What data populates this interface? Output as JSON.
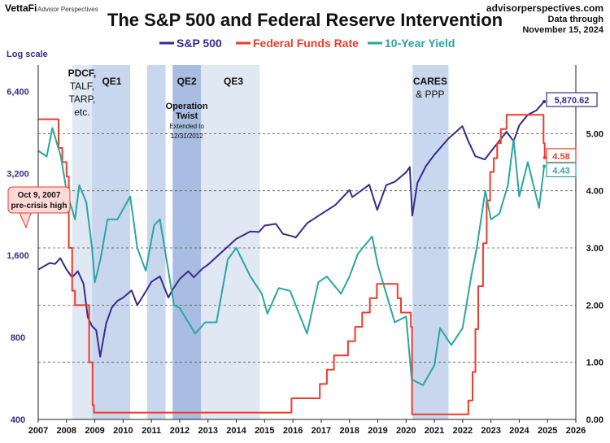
{
  "header": {
    "brand_name": "VettaFi",
    "brand_sub": "Advisor Perspectives",
    "title": "The S&P 500 and Federal Reserve Intervention",
    "source_site": "advisorperspectives.com",
    "data_through_1": "Data through",
    "data_through_2": "November 15, 2024"
  },
  "colors": {
    "sp500": "#3a2a8c",
    "fed_funds": "#ef3b2c",
    "ten_year": "#2aa6a0",
    "band_light": "#dde6f3",
    "band_mid": "#c2d3ec",
    "band_dark": "#9fb6de",
    "left_axis_text": "#3a2a8c"
  },
  "chart_data": {
    "type": "line",
    "title": "The S&P 500 and Federal Reserve Intervention",
    "log_scale_label": "Log scale",
    "x_ticks": [
      "2007",
      "2008",
      "2009",
      "2010",
      "2011",
      "2012",
      "2013",
      "2014",
      "2015",
      "2016",
      "2017",
      "2018",
      "2019",
      "2020",
      "2021",
      "2022",
      "2023",
      "2024",
      "2025",
      "2026"
    ],
    "xlim": [
      2007,
      2026
    ],
    "left_axis": {
      "scale": "log",
      "ylim": [
        400,
        8000
      ],
      "ticks": [
        400,
        800,
        1600,
        3200,
        6400
      ],
      "tick_labels": [
        "400",
        "800",
        "1,600",
        "3,200",
        "6,400"
      ]
    },
    "right_axis": {
      "ylim": [
        0,
        6.2
      ],
      "ticks": [
        0,
        1,
        2,
        3,
        4,
        5
      ],
      "tick_labels": [
        "0.00",
        "1.00",
        "2.00",
        "3.00",
        "4.00",
        "5.00"
      ]
    },
    "grid": "dashed horizontal at right-axis ticks",
    "legend": {
      "placement": "top",
      "entries": [
        "S&P 500",
        "Federal Funds Rate",
        "10-Year Yield"
      ]
    },
    "series": [
      {
        "name": "S&P 500",
        "axis": "left",
        "x": [
          2007.0,
          2007.2,
          2007.4,
          2007.6,
          2007.78,
          2008.0,
          2008.2,
          2008.4,
          2008.6,
          2008.75,
          2008.9,
          2009.05,
          2009.19,
          2009.4,
          2009.6,
          2009.8,
          2010.0,
          2010.3,
          2010.5,
          2010.8,
          2011.0,
          2011.3,
          2011.6,
          2011.75,
          2012.0,
          2012.3,
          2012.5,
          2012.8,
          2013.0,
          2013.5,
          2014.0,
          2014.5,
          2014.8,
          2015.0,
          2015.4,
          2015.65,
          2016.0,
          2016.1,
          2016.5,
          2017.0,
          2017.5,
          2018.0,
          2018.1,
          2018.7,
          2018.98,
          2019.3,
          2019.6,
          2020.0,
          2020.13,
          2020.22,
          2020.4,
          2020.7,
          2021.0,
          2021.5,
          2021.99,
          2022.2,
          2022.45,
          2022.78,
          2023.0,
          2023.55,
          2023.8,
          2024.0,
          2024.3,
          2024.6,
          2024.88
        ],
        "values": [
          1420,
          1460,
          1500,
          1490,
          1565,
          1420,
          1330,
          1400,
          1260,
          950,
          880,
          850,
          680,
          900,
          1030,
          1090,
          1120,
          1190,
          1050,
          1180,
          1280,
          1340,
          1120,
          1200,
          1310,
          1400,
          1330,
          1430,
          1480,
          1650,
          1840,
          1960,
          1950,
          2060,
          2090,
          1920,
          1880,
          1860,
          2100,
          2270,
          2450,
          2780,
          2620,
          2910,
          2350,
          2900,
          2980,
          3230,
          3380,
          2240,
          2950,
          3400,
          3750,
          4300,
          4770,
          4200,
          3700,
          3600,
          3850,
          4550,
          4200,
          4800,
          5250,
          5450,
          5870.62
        ],
        "last_label": "5,870.62"
      },
      {
        "name": "Federal Funds Rate",
        "axis": "right",
        "x": [
          2007.0,
          2007.6,
          2007.72,
          2007.85,
          2008.0,
          2008.08,
          2008.2,
          2008.3,
          2008.8,
          2008.92,
          2008.97,
          2015.95,
          2016.95,
          2017.2,
          2017.45,
          2017.95,
          2018.2,
          2018.45,
          2018.72,
          2018.97,
          2019.55,
          2019.7,
          2019.82,
          2020.17,
          2020.21,
          2022.2,
          2022.35,
          2022.45,
          2022.55,
          2022.72,
          2022.85,
          2022.97,
          2023.1,
          2023.22,
          2023.35,
          2023.55,
          2024.7,
          2024.86,
          2024.9
        ],
        "values": [
          5.25,
          5.25,
          4.75,
          4.5,
          4.25,
          3.0,
          2.25,
          2.0,
          1.0,
          0.25,
          0.12,
          0.37,
          0.62,
          0.87,
          1.12,
          1.37,
          1.62,
          1.87,
          2.12,
          2.37,
          2.37,
          2.12,
          1.87,
          1.62,
          0.09,
          0.33,
          0.83,
          1.58,
          2.33,
          3.08,
          3.83,
          4.33,
          4.57,
          4.83,
          5.08,
          5.33,
          5.33,
          4.83,
          4.58
        ],
        "last_label": "4.58"
      },
      {
        "name": "10-Year Yield",
        "axis": "right",
        "x": [
          2007.0,
          2007.3,
          2007.5,
          2007.8,
          2008.0,
          2008.3,
          2008.45,
          2008.7,
          2008.9,
          2009.0,
          2009.2,
          2009.45,
          2009.8,
          2010.25,
          2010.5,
          2010.8,
          2011.1,
          2011.3,
          2011.6,
          2011.8,
          2012.0,
          2012.55,
          2012.9,
          2013.3,
          2013.7,
          2014.0,
          2014.5,
          2014.9,
          2015.1,
          2015.5,
          2015.9,
          2016.5,
          2016.9,
          2017.2,
          2017.7,
          2018.0,
          2018.3,
          2018.8,
          2019.0,
          2019.6,
          2020.0,
          2020.2,
          2020.6,
          2021.0,
          2021.2,
          2021.6,
          2022.0,
          2022.3,
          2022.5,
          2022.8,
          2023.0,
          2023.3,
          2023.6,
          2023.8,
          2024.0,
          2024.3,
          2024.7,
          2024.88
        ],
        "values": [
          4.7,
          4.6,
          5.1,
          4.6,
          4.0,
          3.5,
          4.1,
          3.8,
          3.0,
          2.4,
          2.8,
          3.5,
          3.5,
          3.9,
          3.0,
          2.6,
          3.4,
          3.5,
          2.6,
          2.0,
          1.95,
          1.5,
          1.7,
          1.7,
          2.8,
          3.0,
          2.5,
          2.2,
          1.85,
          2.3,
          2.25,
          1.5,
          2.4,
          2.5,
          2.2,
          2.5,
          2.9,
          3.2,
          2.7,
          1.7,
          1.8,
          0.7,
          0.6,
          0.95,
          1.6,
          1.3,
          1.6,
          2.5,
          3.0,
          4.0,
          3.5,
          3.6,
          4.1,
          4.9,
          3.9,
          4.5,
          3.7,
          4.43
        ],
        "last_label": "4.43"
      }
    ],
    "annotations": [
      {
        "id": "band_pdcf",
        "x0": 2008.2,
        "x1": 2008.9,
        "shade": "light",
        "lines": [
          "PDCF,",
          "TALF,",
          "TARP,",
          "etc."
        ]
      },
      {
        "id": "band_qe1",
        "x0": 2008.9,
        "x1": 2010.25,
        "shade": "mid",
        "lines": [
          "QE1"
        ]
      },
      {
        "id": "band_qe2",
        "x0": 2010.85,
        "x1": 2011.5,
        "shade": "mid",
        "lines": [
          "QE2"
        ]
      },
      {
        "id": "band_twist",
        "x0": 2011.75,
        "x1": 2012.75,
        "shade": "dark",
        "lines": [
          "Operation",
          "Twist",
          "Extended to",
          "12/31/2012"
        ]
      },
      {
        "id": "band_qe3",
        "x0": 2012.75,
        "x1": 2014.83,
        "shade": "light",
        "lines": [
          "QE3"
        ]
      },
      {
        "id": "band_cares",
        "x0": 2020.23,
        "x1": 2021.5,
        "shade": "mid",
        "lines": [
          "CARES",
          "& PPP"
        ]
      }
    ],
    "callout": {
      "lines": [
        "Oct 9, 2007",
        "pre-crisis high"
      ]
    }
  }
}
